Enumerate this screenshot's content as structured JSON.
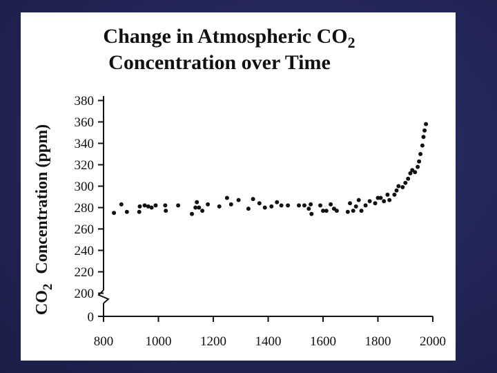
{
  "slide": {
    "background_color": "#22255a",
    "panel_color": "#ffffff"
  },
  "chart_data": {
    "type": "scatter",
    "title_line1_main": "Change in Atmospheric CO",
    "title_line1_sub": "2",
    "title_line2": "Concentration over Time",
    "ylabel_main": "Concentration (ppm)",
    "ylabel_co": "CO",
    "ylabel_sub": "2",
    "xlabel": "",
    "xlim": [
      800,
      2000
    ],
    "ylim_broken": [
      0,
      380
    ],
    "x_ticks": [
      "800",
      "1000",
      "1200",
      "1400",
      "1600",
      "1800",
      "2000"
    ],
    "y_ticks": [
      "0",
      "200",
      "220",
      "240",
      "260",
      "280",
      "300",
      "320",
      "340",
      "360",
      "380"
    ],
    "axis_break": "between 0 and 200",
    "marker_color": "#111111",
    "points": [
      {
        "x": 838,
        "y": 275
      },
      {
        "x": 865,
        "y": 283
      },
      {
        "x": 885,
        "y": 276
      },
      {
        "x": 930,
        "y": 276
      },
      {
        "x": 932,
        "y": 281
      },
      {
        "x": 950,
        "y": 282
      },
      {
        "x": 963,
        "y": 281
      },
      {
        "x": 975,
        "y": 280
      },
      {
        "x": 990,
        "y": 282
      },
      {
        "x": 1025,
        "y": 282
      },
      {
        "x": 1027,
        "y": 277
      },
      {
        "x": 1072,
        "y": 282
      },
      {
        "x": 1122,
        "y": 274
      },
      {
        "x": 1135,
        "y": 280
      },
      {
        "x": 1140,
        "y": 285
      },
      {
        "x": 1148,
        "y": 280
      },
      {
        "x": 1160,
        "y": 277
      },
      {
        "x": 1180,
        "y": 283
      },
      {
        "x": 1222,
        "y": 281
      },
      {
        "x": 1250,
        "y": 289
      },
      {
        "x": 1265,
        "y": 283
      },
      {
        "x": 1292,
        "y": 287
      },
      {
        "x": 1328,
        "y": 279
      },
      {
        "x": 1345,
        "y": 288
      },
      {
        "x": 1368,
        "y": 284
      },
      {
        "x": 1388,
        "y": 280
      },
      {
        "x": 1412,
        "y": 281
      },
      {
        "x": 1432,
        "y": 285
      },
      {
        "x": 1448,
        "y": 282
      },
      {
        "x": 1472,
        "y": 282
      },
      {
        "x": 1512,
        "y": 282
      },
      {
        "x": 1532,
        "y": 282
      },
      {
        "x": 1548,
        "y": 279
      },
      {
        "x": 1555,
        "y": 283
      },
      {
        "x": 1558,
        "y": 274
      },
      {
        "x": 1590,
        "y": 282
      },
      {
        "x": 1600,
        "y": 277
      },
      {
        "x": 1612,
        "y": 277
      },
      {
        "x": 1628,
        "y": 283
      },
      {
        "x": 1640,
        "y": 279
      },
      {
        "x": 1650,
        "y": 277
      },
      {
        "x": 1690,
        "y": 276
      },
      {
        "x": 1698,
        "y": 284
      },
      {
        "x": 1710,
        "y": 277
      },
      {
        "x": 1720,
        "y": 281
      },
      {
        "x": 1730,
        "y": 287
      },
      {
        "x": 1740,
        "y": 277
      },
      {
        "x": 1755,
        "y": 282
      },
      {
        "x": 1770,
        "y": 286
      },
      {
        "x": 1790,
        "y": 284
      },
      {
        "x": 1800,
        "y": 289
      },
      {
        "x": 1810,
        "y": 289
      },
      {
        "x": 1822,
        "y": 286
      },
      {
        "x": 1835,
        "y": 292
      },
      {
        "x": 1842,
        "y": 287
      },
      {
        "x": 1860,
        "y": 292
      },
      {
        "x": 1868,
        "y": 296
      },
      {
        "x": 1875,
        "y": 300
      },
      {
        "x": 1890,
        "y": 299
      },
      {
        "x": 1900,
        "y": 303
      },
      {
        "x": 1910,
        "y": 307
      },
      {
        "x": 1918,
        "y": 312
      },
      {
        "x": 1925,
        "y": 315
      },
      {
        "x": 1935,
        "y": 313
      },
      {
        "x": 1945,
        "y": 318
      },
      {
        "x": 1950,
        "y": 323
      },
      {
        "x": 1955,
        "y": 330
      },
      {
        "x": 1962,
        "y": 338
      },
      {
        "x": 1966,
        "y": 346
      },
      {
        "x": 1970,
        "y": 352
      },
      {
        "x": 1975,
        "y": 358
      }
    ]
  }
}
